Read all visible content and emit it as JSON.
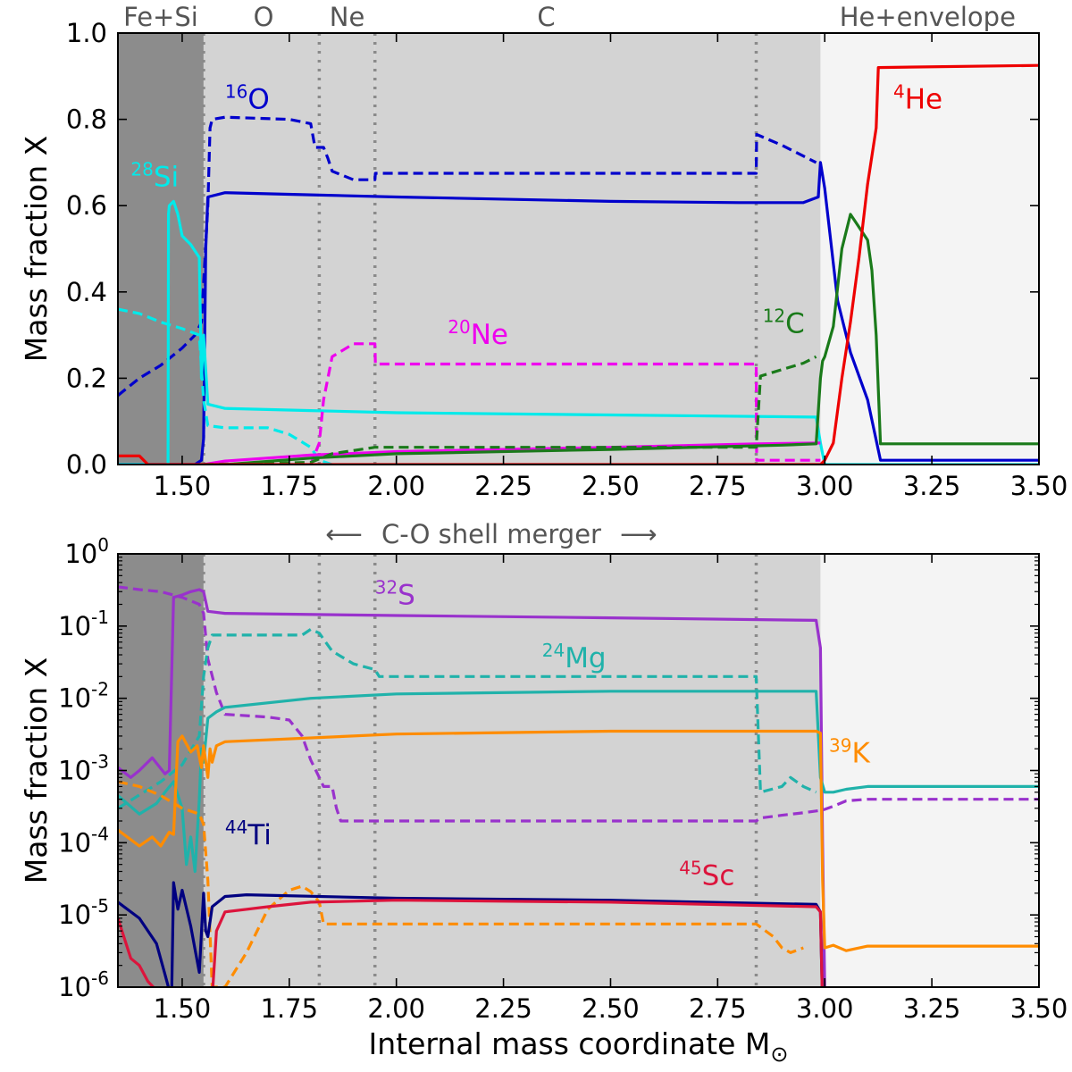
{
  "chart_data": [
    {
      "id": "top",
      "type": "line",
      "yscale": "linear",
      "xlim": [
        1.35,
        3.5
      ],
      "ylim": [
        0,
        1
      ],
      "xticks": [
        1.5,
        1.75,
        2.0,
        2.25,
        2.5,
        2.75,
        3.0,
        3.25,
        3.5
      ],
      "xtick_labels": [
        "1.50",
        "1.75",
        "2.00",
        "2.25",
        "2.50",
        "2.75",
        "3.00",
        "3.25",
        "3.50"
      ],
      "yticks": [
        0,
        0.2,
        0.4,
        0.6,
        0.8,
        1.0
      ],
      "ytick_labels": [
        "0.0",
        "0.2",
        "0.4",
        "0.6",
        "0.8",
        "1.0"
      ],
      "ylabel": "Mass fraction X",
      "zones": [
        {
          "name": "Fe+Si",
          "x": [
            1.35,
            1.55
          ],
          "color": "#8c8c8c"
        },
        {
          "name": "O",
          "x": [
            1.55,
            1.82
          ],
          "color": "#d3d3d3"
        },
        {
          "name": "Ne",
          "x": [
            1.82,
            1.95
          ],
          "color": "#d3d3d3"
        },
        {
          "name": "C",
          "x": [
            1.95,
            2.99
          ],
          "color": "#d3d3d3"
        },
        {
          "name": "He+envelope",
          "x": [
            2.99,
            3.5
          ],
          "color": "#f4f4f4"
        }
      ],
      "zone_label_positions": [
        1.45,
        1.69,
        1.885,
        2.35,
        3.24
      ],
      "boundaries": [
        1.55,
        1.82,
        1.95,
        2.84
      ],
      "series": [
        {
          "name": "16O",
          "color": "#0000cc",
          "dashed": false,
          "x": [
            1.35,
            1.53,
            1.545,
            1.55,
            1.555,
            1.56,
            1.6,
            1.8,
            2.0,
            2.5,
            2.8,
            2.95,
            2.985,
            2.99,
            3.0,
            3.03,
            3.06,
            3.1,
            3.13,
            3.5
          ],
          "y": [
            0,
            0,
            0.01,
            0.06,
            0.5,
            0.62,
            0.63,
            0.625,
            0.62,
            0.61,
            0.607,
            0.607,
            0.62,
            0.7,
            0.64,
            0.38,
            0.26,
            0.15,
            0.01,
            0.01
          ]
        },
        {
          "name": "16O",
          "color": "#0000cc",
          "dashed": true,
          "x": [
            1.35,
            1.4,
            1.45,
            1.5,
            1.53,
            1.545,
            1.56,
            1.565,
            1.57,
            1.6,
            1.75,
            1.8,
            1.81,
            1.83,
            1.84,
            1.85,
            1.9,
            1.95,
            1.951,
            2.84,
            2.841,
            2.9,
            2.98
          ],
          "y": [
            0.16,
            0.2,
            0.23,
            0.27,
            0.3,
            0.33,
            0.6,
            0.78,
            0.8,
            0.805,
            0.8,
            0.79,
            0.735,
            0.735,
            0.71,
            0.68,
            0.66,
            0.66,
            0.675,
            0.675,
            0.765,
            0.74,
            0.7
          ]
        },
        {
          "name": "28Si",
          "color": "#00eaea",
          "dashed": false,
          "x": [
            1.35,
            1.467,
            1.468,
            1.47,
            1.48,
            1.49,
            1.5,
            1.52,
            1.54,
            1.545,
            1.55,
            1.56,
            1.6,
            1.8,
            2.0,
            2.5,
            2.98,
            2.99,
            3.0,
            3.5
          ],
          "y": [
            0,
            0,
            0.58,
            0.6,
            0.61,
            0.58,
            0.53,
            0.51,
            0.48,
            0.2,
            0.3,
            0.14,
            0.13,
            0.125,
            0.12,
            0.115,
            0.11,
            0.05,
            0,
            0
          ]
        },
        {
          "name": "28Si",
          "color": "#00eaea",
          "dashed": true,
          "x": [
            1.35,
            1.4,
            1.45,
            1.5,
            1.54,
            1.55,
            1.56,
            1.6,
            1.7,
            1.75,
            1.8,
            1.82,
            1.85
          ],
          "y": [
            0.36,
            0.35,
            0.33,
            0.315,
            0.3,
            0.15,
            0.09,
            0.085,
            0.085,
            0.07,
            0.04,
            0.01,
            0
          ]
        },
        {
          "name": "20Ne",
          "color": "#ee00ee",
          "dashed": false,
          "x": [
            1.55,
            1.6,
            1.8,
            2.0,
            2.5,
            2.84,
            2.99
          ],
          "y": [
            0,
            0.008,
            0.022,
            0.03,
            0.04,
            0.048,
            0.05
          ]
        },
        {
          "name": "20Ne",
          "color": "#ee00ee",
          "dashed": true,
          "x": [
            1.55,
            1.8,
            1.82,
            1.83,
            1.85,
            1.9,
            1.95,
            1.951,
            2.84,
            2.841,
            2.99
          ],
          "y": [
            0,
            0,
            0.05,
            0.15,
            0.25,
            0.28,
            0.28,
            0.233,
            0.233,
            0.01,
            0.01
          ]
        },
        {
          "name": "12C",
          "color": "#1a7a1a",
          "dashed": false,
          "x": [
            1.55,
            1.6,
            1.8,
            2.0,
            2.5,
            2.9,
            2.98,
            2.99,
            2.995,
            3.0,
            3.02,
            3.04,
            3.06,
            3.08,
            3.1,
            3.11,
            3.12,
            3.13,
            3.5
          ],
          "y": [
            0,
            0,
            0.015,
            0.025,
            0.035,
            0.045,
            0.048,
            0.2,
            0.24,
            0.25,
            0.32,
            0.5,
            0.58,
            0.55,
            0.52,
            0.45,
            0.3,
            0.048,
            0.048
          ]
        },
        {
          "name": "12C",
          "color": "#1a7a1a",
          "dashed": true,
          "x": [
            1.55,
            1.8,
            1.85,
            1.95,
            2.0,
            2.84,
            2.85,
            2.9,
            2.95,
            2.98
          ],
          "y": [
            0,
            0.005,
            0.025,
            0.04,
            0.04,
            0.04,
            0.205,
            0.22,
            0.235,
            0.25
          ]
        },
        {
          "name": "4He",
          "color": "#ee0000",
          "dashed": false,
          "x": [
            1.35,
            1.4,
            1.42,
            1.45,
            2.99,
            3.0,
            3.02,
            3.04,
            3.06,
            3.08,
            3.1,
            3.12,
            3.125,
            3.5
          ],
          "y": [
            0.02,
            0.02,
            0,
            0,
            0,
            0.01,
            0.05,
            0.2,
            0.33,
            0.48,
            0.65,
            0.78,
            0.92,
            0.925
          ]
        }
      ],
      "labels": [
        {
          "iso": "16",
          "sym": "O",
          "x": 1.6,
          "y": 0.825,
          "color": "#0000cc"
        },
        {
          "iso": "28",
          "sym": "Si",
          "x": 1.38,
          "y": 0.645,
          "color": "#00eaea"
        },
        {
          "iso": "20",
          "sym": "Ne",
          "x": 2.12,
          "y": 0.28,
          "color": "#ee00ee"
        },
        {
          "iso": "12",
          "sym": "C",
          "x": 2.855,
          "y": 0.305,
          "color": "#1a7a1a"
        },
        {
          "iso": "4",
          "sym": "He",
          "x": 3.16,
          "y": 0.825,
          "color": "#ee0000"
        }
      ]
    },
    {
      "id": "bottom",
      "type": "line",
      "yscale": "log",
      "xlim": [
        1.35,
        3.5
      ],
      "ylim_exp": [
        -6,
        0
      ],
      "xticks": [
        1.5,
        1.75,
        2.0,
        2.25,
        2.5,
        2.75,
        3.0,
        3.25,
        3.5
      ],
      "xtick_labels": [
        "1.50",
        "1.75",
        "2.00",
        "2.25",
        "2.50",
        "2.75",
        "3.00",
        "3.25",
        "3.50"
      ],
      "ytick_exponents": [
        "0",
        "-1",
        "-2",
        "-3",
        "-4",
        "-5",
        "-6"
      ],
      "ytick_base": "10",
      "xlabel": "Internal mass coordinate M",
      "xlabel_unit": "⊙",
      "ylabel": "Mass fraction X",
      "zones": [
        {
          "x": [
            1.35,
            1.55
          ],
          "color": "#8c8c8c"
        },
        {
          "x": [
            1.55,
            2.99
          ],
          "color": "#d3d3d3"
        },
        {
          "x": [
            2.99,
            3.5
          ],
          "color": "#f4f4f4"
        }
      ],
      "boundaries": [
        1.55,
        1.82,
        1.95,
        2.84
      ],
      "series": [
        {
          "name": "32S",
          "color": "#9932cc",
          "dashed": false,
          "x": [
            1.35,
            1.38,
            1.4,
            1.43,
            1.46,
            1.47,
            1.48,
            1.5,
            1.52,
            1.54,
            1.55,
            1.56,
            1.6,
            2.0,
            2.5,
            2.98,
            2.99,
            2.995,
            3.0
          ],
          "y": [
            0.0011,
            0.0008,
            0.001,
            0.0015,
            0.0009,
            0.001,
            0.25,
            0.27,
            0.3,
            0.32,
            0.3,
            0.16,
            0.15,
            0.14,
            0.13,
            0.12,
            0.05,
            0.0001,
            1e-06
          ]
        },
        {
          "name": "32S",
          "color": "#9932cc",
          "dashed": true,
          "x": [
            1.35,
            1.4,
            1.45,
            1.5,
            1.54,
            1.55,
            1.56,
            1.58,
            1.6,
            1.7,
            1.75,
            1.78,
            1.8,
            1.82,
            1.83,
            1.85,
            1.86,
            1.87,
            1.9,
            2.0,
            2.84,
            2.85,
            2.9,
            2.95,
            2.99,
            3.0,
            3.02,
            3.05,
            3.1,
            3.5
          ],
          "y": [
            0.35,
            0.32,
            0.3,
            0.25,
            0.2,
            0.15,
            0.035,
            0.012,
            0.006,
            0.0055,
            0.005,
            0.003,
            0.0014,
            0.0008,
            0.0006,
            0.0006,
            0.0003,
            0.0002,
            0.0002,
            0.0002,
            0.0002,
            0.00022,
            0.00024,
            0.00026,
            0.00028,
            0.00029,
            0.00032,
            0.00038,
            0.0004,
            0.0004
          ]
        },
        {
          "name": "24Mg",
          "color": "#20b2aa",
          "dashed": false,
          "x": [
            1.35,
            1.4,
            1.44,
            1.46,
            1.48,
            1.5,
            1.51,
            1.52,
            1.53,
            1.54,
            1.545,
            1.55,
            1.56,
            1.58,
            1.6,
            1.8,
            2.0,
            2.5,
            2.98,
            2.99,
            3.0,
            3.02,
            3.05,
            3.1,
            3.5
          ],
          "y": [
            0.00045,
            0.00025,
            0.00035,
            0.0005,
            0.0007,
            0.0003,
            5e-05,
            0.00012,
            4e-05,
            0.0004,
            0.002,
            0.0013,
            0.0053,
            0.0065,
            0.0075,
            0.01,
            0.0115,
            0.0125,
            0.0125,
            0.0008,
            0.0005,
            0.0005,
            0.00055,
            0.0006,
            0.0006
          ]
        },
        {
          "name": "24Mg",
          "color": "#20b2aa",
          "dashed": true,
          "x": [
            1.35,
            1.45,
            1.5,
            1.54,
            1.55,
            1.56,
            1.57,
            1.58,
            1.6,
            1.7,
            1.78,
            1.8,
            1.82,
            1.85,
            1.9,
            1.95,
            1.96,
            2.0,
            2.84,
            2.85,
            2.9,
            2.92,
            2.95,
            2.98
          ],
          "y": [
            0.0003,
            0.0007,
            0.0012,
            0.003,
            0.02,
            0.05,
            0.075,
            0.075,
            0.075,
            0.075,
            0.075,
            0.09,
            0.08,
            0.045,
            0.03,
            0.025,
            0.02,
            0.02,
            0.02,
            0.0005,
            0.0006,
            0.0008,
            0.0006,
            0.0005
          ]
        },
        {
          "name": "39K",
          "color": "#ff8c00",
          "dashed": false,
          "x": [
            1.35,
            1.4,
            1.43,
            1.45,
            1.47,
            1.48,
            1.49,
            1.5,
            1.52,
            1.535,
            1.545,
            1.55,
            1.56,
            1.565,
            1.57,
            1.58,
            1.6,
            2.0,
            2.5,
            2.98,
            2.99,
            2.995,
            3.0,
            3.02,
            3.05,
            3.1,
            3.5
          ],
          "y": [
            0.00015,
            9e-05,
            0.00012,
            9e-05,
            0.00014,
            0.00013,
            0.0025,
            0.003,
            0.0018,
            0.0022,
            0.0011,
            0.0022,
            0.0008,
            0.002,
            0.0013,
            0.0022,
            0.0025,
            0.0032,
            0.0035,
            0.0035,
            0.0033,
            3e-05,
            3.5e-06,
            3.8e-06,
            3.2e-06,
            3.7e-06,
            3.7e-06
          ]
        },
        {
          "name": "39K",
          "color": "#ff8c00",
          "dashed": true,
          "x": [
            1.35,
            1.4,
            1.45,
            1.5,
            1.54,
            1.55,
            1.56,
            1.57,
            1.58,
            1.6,
            1.65,
            1.7,
            1.75,
            1.78,
            1.8,
            1.82,
            1.83,
            1.84,
            1.85,
            2.0,
            2.84,
            2.88,
            2.9,
            2.92,
            2.95
          ],
          "y": [
            0.0007,
            0.0006,
            0.00045,
            0.0003,
            0.00025,
            0.00018,
            3e-05,
            1e-06,
            1e-06,
            1e-06,
            3e-06,
            1.2e-05,
            2.2e-05,
            2.5e-05,
            2.1e-05,
            1.5e-05,
            7.5e-06,
            7.5e-06,
            7.5e-06,
            7.5e-06,
            7.5e-06,
            5e-06,
            3.5e-06,
            3e-06,
            3.5e-06
          ]
        },
        {
          "name": "44Ti",
          "color": "#000080",
          "dashed": false,
          "x": [
            1.35,
            1.4,
            1.44,
            1.46,
            1.47,
            1.475,
            1.48,
            1.49,
            1.5,
            1.52,
            1.54,
            1.55,
            1.555,
            1.56,
            1.565,
            1.57,
            1.6,
            1.65,
            2.0,
            2.5,
            2.98,
            2.99,
            2.995
          ],
          "y": [
            1.5e-05,
            9e-06,
            4e-06,
            1.5e-06,
            9e-07,
            5e-07,
            2.8e-05,
            1.2e-05,
            2.2e-05,
            7e-06,
            1.6e-06,
            2e-05,
            6e-06,
            5e-06,
            8e-06,
            1.3e-05,
            1.8e-05,
            1.9e-05,
            1.7e-05,
            1.6e-05,
            1.4e-05,
            1.1e-05,
            5e-07
          ]
        },
        {
          "name": "45Sc",
          "color": "#dc143c",
          "dashed": false,
          "x": [
            1.35,
            1.38,
            1.4,
            1.42,
            1.44,
            1.45,
            1.46,
            1.47,
            1.5,
            1.55,
            1.56,
            1.57,
            1.58,
            1.6,
            1.7,
            1.8,
            2.0,
            2.5,
            2.98,
            2.99,
            2.995
          ],
          "y": [
            9e-06,
            2.5e-06,
            2e-06,
            1.2e-06,
            9e-07,
            5e-07,
            5e-07,
            5e-07,
            5e-07,
            5e-07,
            5e-07,
            7e-07,
            6e-06,
            1.1e-05,
            1.3e-05,
            1.5e-05,
            1.6e-05,
            1.5e-05,
            1.3e-05,
            1.1e-05,
            5e-07
          ]
        }
      ],
      "labels": [
        {
          "iso": "32",
          "sym": "S",
          "x": 1.95,
          "y": 0.2,
          "color": "#9932cc"
        },
        {
          "iso": "24",
          "sym": "Mg",
          "x": 2.34,
          "y": 0.027,
          "color": "#20b2aa"
        },
        {
          "iso": "39",
          "sym": "K",
          "x": 3.01,
          "y": 0.0013,
          "color": "#ff8c00"
        },
        {
          "iso": "44",
          "sym": "Ti",
          "x": 1.6,
          "y": 9.5e-05,
          "color": "#000080"
        },
        {
          "iso": "45",
          "sym": "Sc",
          "x": 2.66,
          "y": 2.6e-05,
          "color": "#dc143c"
        }
      ]
    }
  ],
  "merger_annotation": "C-O shell merger",
  "merger_arrow_left": "⟵",
  "merger_arrow_right": "⟶"
}
